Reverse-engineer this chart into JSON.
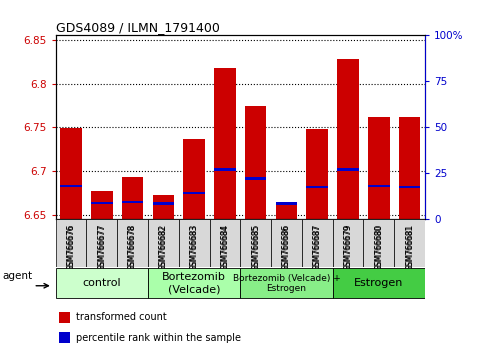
{
  "title": "GDS4089 / ILMN_1791400",
  "samples": [
    "GSM766676",
    "GSM766677",
    "GSM766678",
    "GSM766682",
    "GSM766683",
    "GSM766684",
    "GSM766685",
    "GSM766686",
    "GSM766687",
    "GSM766679",
    "GSM766680",
    "GSM766681"
  ],
  "bar_heights": [
    6.749,
    6.677,
    6.694,
    6.673,
    6.737,
    6.818,
    6.775,
    6.664,
    6.748,
    6.828,
    6.762,
    6.762
  ],
  "percentile_values": [
    6.683,
    6.664,
    6.665,
    6.663,
    6.675,
    6.702,
    6.692,
    6.663,
    6.682,
    6.702,
    6.683,
    6.682
  ],
  "ymin": 6.645,
  "ymax": 6.855,
  "yticks": [
    6.65,
    6.7,
    6.75,
    6.8,
    6.85
  ],
  "ytick_labels": [
    "6.65",
    "6.7",
    "6.75",
    "6.8",
    "6.85"
  ],
  "y2ticks": [
    0,
    25,
    50,
    75,
    100
  ],
  "y2tick_labels": [
    "0",
    "25",
    "50",
    "75",
    "100%"
  ],
  "groups": [
    {
      "label": "control",
      "start": 0,
      "end": 3,
      "color": "#ccffcc"
    },
    {
      "label": "Bortezomib\n(Velcade)",
      "start": 3,
      "end": 6,
      "color": "#aaffaa"
    },
    {
      "label": "Bortezomib (Velcade) +\nEstrogen",
      "start": 6,
      "end": 9,
      "color": "#88ee88"
    },
    {
      "label": "Estrogen",
      "start": 9,
      "end": 12,
      "color": "#44cc44"
    }
  ],
  "bar_color": "#cc0000",
  "percentile_color": "#0000cc",
  "bar_width": 0.7,
  "agent_label": "agent",
  "legend_items": [
    {
      "label": "transformed count",
      "color": "#cc0000"
    },
    {
      "label": "percentile rank within the sample",
      "color": "#0000cc"
    }
  ]
}
